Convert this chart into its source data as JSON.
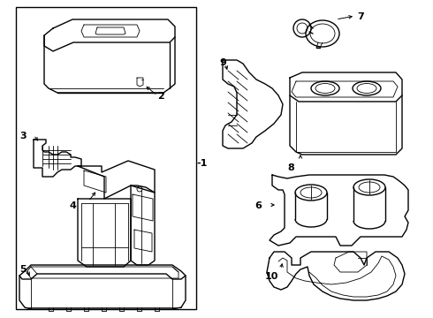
{
  "bg": "#ffffff",
  "lc": "#000000",
  "lw": 1.0,
  "tlw": 0.6,
  "fs": 8,
  "fig_w": 4.9,
  "fig_h": 3.6,
  "dpi": 100
}
